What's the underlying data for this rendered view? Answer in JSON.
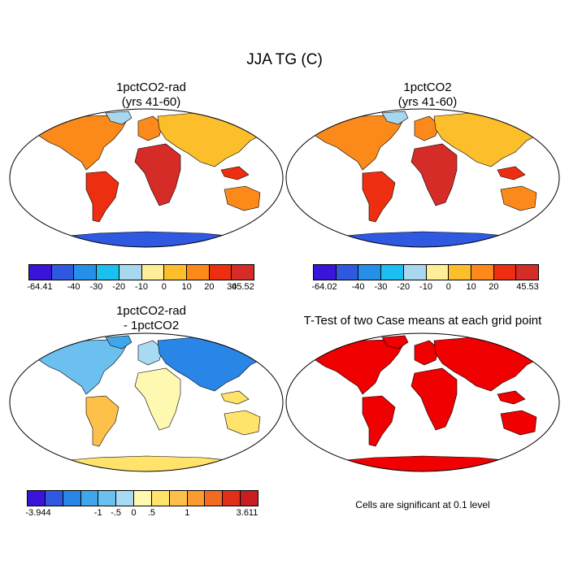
{
  "title": "JJA TG (C)",
  "panels": [
    {
      "title": "1pctCO2-rad\n(yrs 41-60)",
      "colorbar": {
        "colors": [
          "#3a14d8",
          "#2e59e0",
          "#2590e8",
          "#1bc0f0",
          "#a8d8ee",
          "#ffee99",
          "#fcbf2b",
          "#fb8a1a",
          "#ee2e10",
          "#d52c28"
        ],
        "labels": [
          "-64.41",
          "-40",
          "-30",
          "-20",
          "-10",
          "0",
          "10",
          "20",
          "30",
          "45.52"
        ]
      }
    },
    {
      "title": "1pctCO2\n(yrs 41-60)",
      "colorbar": {
        "colors": [
          "#3a14d8",
          "#2e59e0",
          "#2590e8",
          "#1bc0f0",
          "#a8d8ee",
          "#ffee99",
          "#fcbf2b",
          "#fb8a1a",
          "#ee2e10",
          "#d52c28"
        ],
        "labels": [
          "-64.02",
          "-40",
          "-30",
          "-20",
          "-10",
          "0",
          "10",
          "20",
          "45.53"
        ]
      }
    },
    {
      "title": "1pctCO2-rad\n- 1pctCO2",
      "colorbar": {
        "colors": [
          "#3a14d8",
          "#2e59e0",
          "#2a86e6",
          "#3fa6ec",
          "#6cc0f0",
          "#a8daf2",
          "#fff8b0",
          "#ffe36a",
          "#fdc14a",
          "#fb9a2e",
          "#f26b1e",
          "#e0301a",
          "#c81e22"
        ],
        "labels": [
          "-3.944",
          "-1",
          "-.5",
          "0",
          ".5",
          "1",
          "3.611"
        ]
      }
    },
    {
      "title": "T-Test of two Case means at each grid point",
      "note": "Cells are significant at 0.1 level",
      "sig_color": "#f00000"
    }
  ]
}
